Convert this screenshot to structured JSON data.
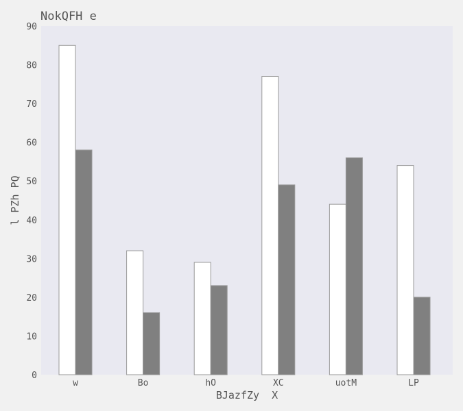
{
  "chart_data": {
    "type": "bar",
    "title": "NokQFH e",
    "xlabel": "BJazfZy  X",
    "ylabel": "l PZh PQ",
    "categories": [
      "w",
      "Bo",
      "hO",
      "XC",
      "uotM",
      "LP"
    ],
    "series": [
      {
        "values": [
          85,
          32,
          29,
          77,
          44,
          54
        ],
        "color": "#ffffff"
      },
      {
        "values": [
          58,
          16,
          23,
          49,
          56,
          20
        ],
        "color": "#808080"
      }
    ],
    "ylim": [
      0,
      90
    ],
    "yticks": [
      0,
      10,
      20,
      30,
      40,
      50,
      60,
      70,
      80,
      90
    ],
    "grid": false,
    "legend": "none",
    "colors": {
      "plot_background": "#e9e9f1",
      "page_background": "#f1f1f1",
      "bar_edge": "#999999",
      "text": "#555555"
    }
  }
}
